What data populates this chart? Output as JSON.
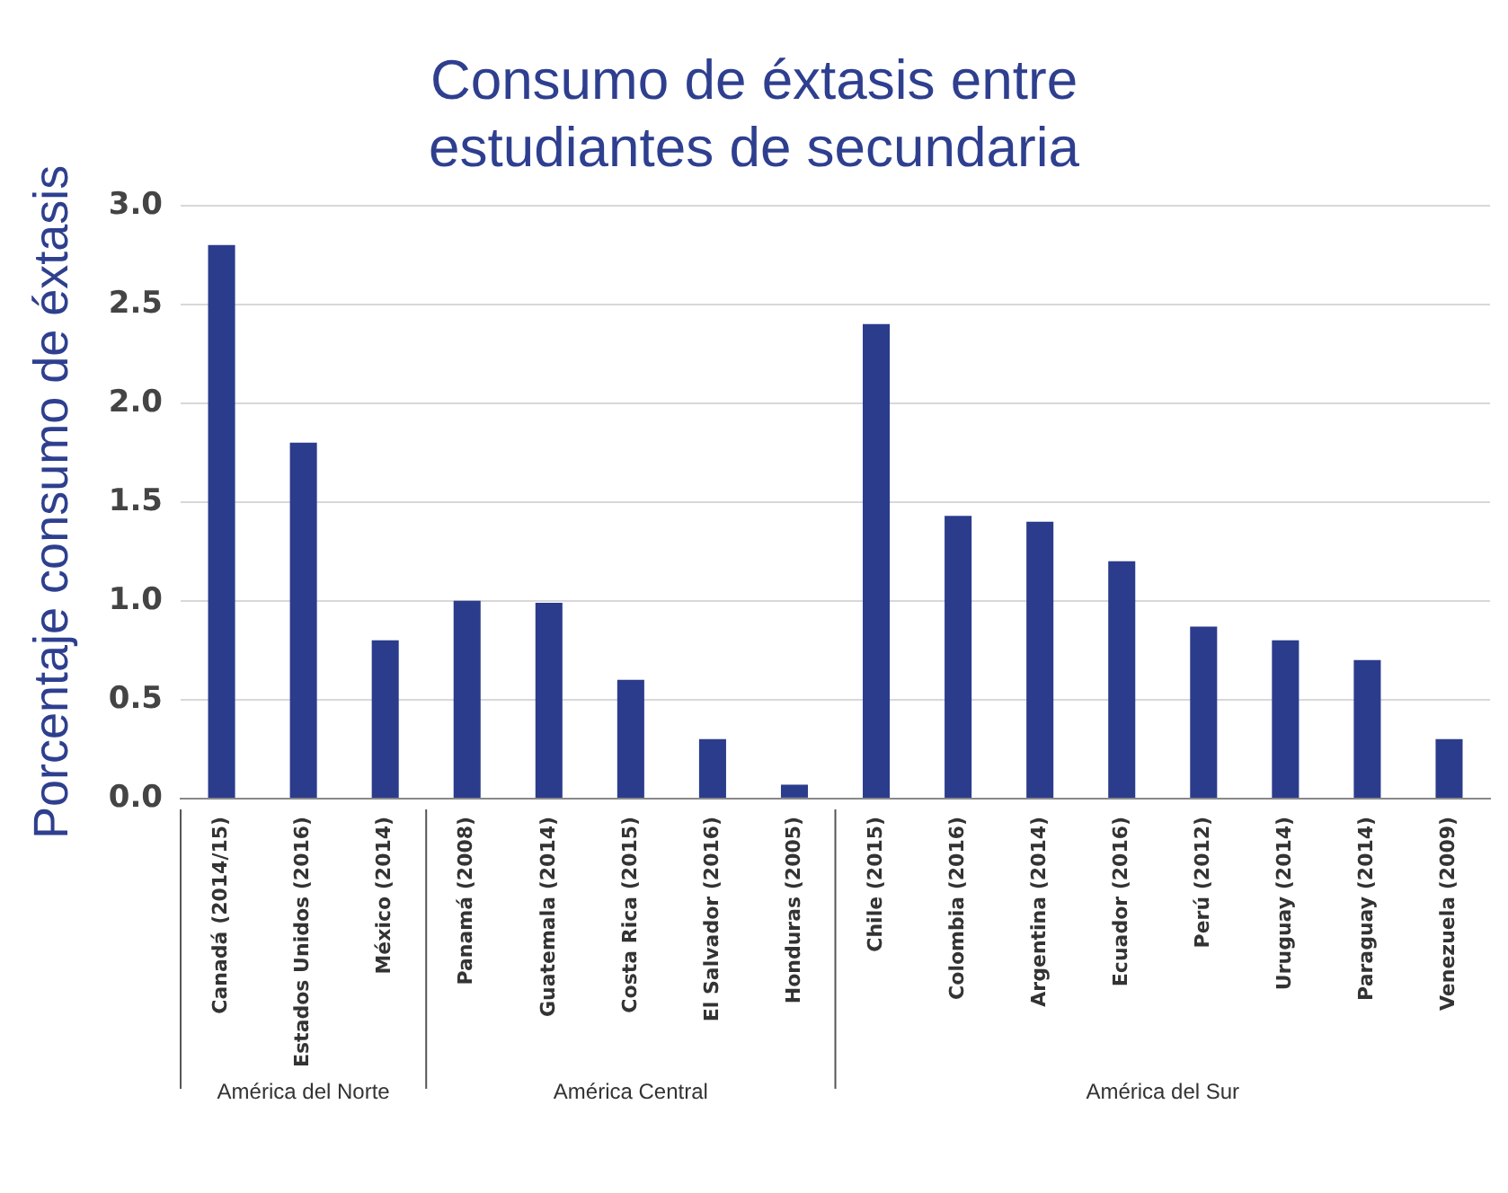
{
  "chart_data": {
    "type": "bar",
    "title": "Consumo de éxtasis entre estudiantes de secundaria",
    "ylabel": "Porcentaje consumo de éxtasis",
    "categories": [
      "Canadá (2014/15)",
      "Estados Unidos (2016)",
      "México (2014)",
      "Panamá (2008)",
      "Guatemala (2014)",
      "Costa Rica (2015)",
      "El Salvador (2016)",
      "Honduras (2005)",
      "Chile (2015)",
      "Colombia (2016)",
      "Argentina (2014)",
      "Ecuador (2016)",
      "Perú (2012)",
      "Uruguay (2014)",
      "Paraguay (2014)",
      "Venezuela (2009)"
    ],
    "values": [
      2.8,
      1.8,
      0.8,
      1.0,
      0.99,
      0.6,
      0.3,
      0.07,
      2.4,
      1.43,
      1.4,
      1.2,
      0.87,
      0.8,
      0.7,
      0.3
    ],
    "color": "#2b3c8c",
    "ylim": [
      0,
      3
    ],
    "yticks": [
      {
        "value": 0,
        "label": "0.0"
      },
      {
        "value": 0.5,
        "label": "0.5"
      },
      {
        "value": 1,
        "label": "1.0"
      },
      {
        "value": 1.5,
        "label": "1.5"
      },
      {
        "value": 2,
        "label": "2.0"
      },
      {
        "value": 2.5,
        "label": "2.5"
      },
      {
        "value": 3,
        "label": "3.0"
      }
    ],
    "grid": "y",
    "legend": false,
    "annotations": [
      "América del Norte",
      "América Central",
      "América del Sur"
    ]
  }
}
